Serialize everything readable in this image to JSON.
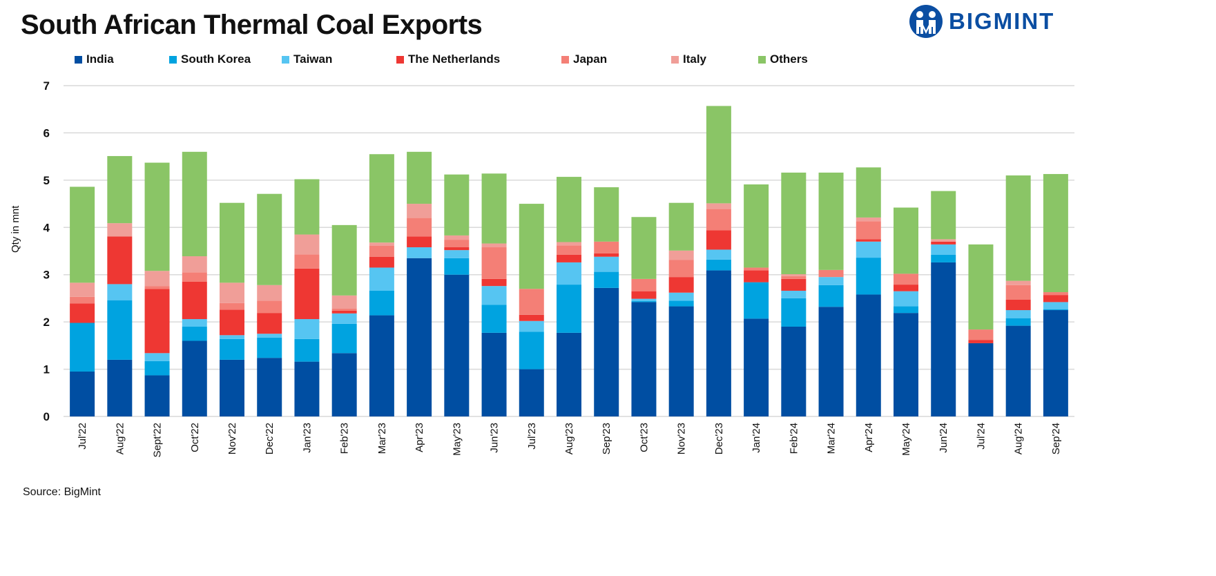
{
  "title": "South African Thermal Coal Exports",
  "logo": {
    "text": "BIGMINT",
    "color": "#0b4ea2"
  },
  "source": "Source: BigMint",
  "chart_data": {
    "type": "bar",
    "stacked": true,
    "title": "South African Thermal Coal Exports",
    "xlabel": "",
    "ylabel": "Qty in mnt",
    "ylim": [
      0,
      7
    ],
    "yticks": [
      0,
      1,
      2,
      3,
      4,
      5,
      6,
      7
    ],
    "grid": true,
    "legend_position": "top",
    "categories": [
      "Jul'22",
      "Aug'22",
      "Sept'22",
      "Oct'22",
      "Nov'22",
      "Dec'22",
      "Jan'23",
      "Feb'23",
      "Mar'23",
      "Apr'23",
      "May'23",
      "Jun'23",
      "Jul'23",
      "Aug'23",
      "Sep'23",
      "Oct'23",
      "Nov'23",
      "Dec'23",
      "Jan'24",
      "Feb'24",
      "Mar'24",
      "Apr'24",
      "May'24",
      "Jun'24",
      "Jul'24",
      "Aug'24",
      "Sep'24"
    ],
    "series": [
      {
        "name": "India",
        "color": "#004ea2",
        "values": [
          0.95,
          1.2,
          0.87,
          1.6,
          1.2,
          1.24,
          1.16,
          1.34,
          2.14,
          3.35,
          3.0,
          1.77,
          1.0,
          1.77,
          2.72,
          2.42,
          2.33,
          3.09,
          2.07,
          1.9,
          2.32,
          2.58,
          2.19,
          3.26,
          1.55,
          1.92,
          2.25
        ]
      },
      {
        "name": "South Korea",
        "color": "#00a3e0",
        "values": [
          1.03,
          1.26,
          0.3,
          0.3,
          0.44,
          0.43,
          0.48,
          0.62,
          0.52,
          0.0,
          0.35,
          0.59,
          0.79,
          1.02,
          0.34,
          0.02,
          0.12,
          0.23,
          0.77,
          0.6,
          0.46,
          0.78,
          0.14,
          0.16,
          0.0,
          0.16,
          0.02
        ]
      },
      {
        "name": "Taiwan",
        "color": "#56c5f2",
        "values": [
          0.0,
          0.34,
          0.17,
          0.16,
          0.08,
          0.08,
          0.42,
          0.22,
          0.49,
          0.23,
          0.17,
          0.4,
          0.23,
          0.47,
          0.32,
          0.05,
          0.17,
          0.21,
          0.0,
          0.16,
          0.17,
          0.34,
          0.32,
          0.22,
          0.0,
          0.17,
          0.15
        ]
      },
      {
        "name": "The Netherlands",
        "color": "#ee3733",
        "values": [
          0.41,
          1.01,
          1.36,
          0.79,
          0.54,
          0.44,
          1.07,
          0.06,
          0.23,
          0.23,
          0.06,
          0.15,
          0.13,
          0.16,
          0.07,
          0.16,
          0.33,
          0.41,
          0.25,
          0.25,
          0.0,
          0.05,
          0.14,
          0.06,
          0.07,
          0.22,
          0.15
        ]
      },
      {
        "name": "Japan",
        "color": "#f47f76",
        "values": [
          0.14,
          0.0,
          0.06,
          0.2,
          0.14,
          0.26,
          0.3,
          0.04,
          0.23,
          0.39,
          0.16,
          0.67,
          0.55,
          0.2,
          0.25,
          0.26,
          0.36,
          0.45,
          0.06,
          0.06,
          0.15,
          0.38,
          0.23,
          0.0,
          0.22,
          0.31,
          0.06
        ]
      },
      {
        "name": "Italy",
        "color": "#f09e98",
        "values": [
          0.3,
          0.28,
          0.32,
          0.34,
          0.43,
          0.33,
          0.42,
          0.28,
          0.07,
          0.3,
          0.09,
          0.08,
          0.0,
          0.07,
          0.0,
          0.0,
          0.2,
          0.12,
          0.0,
          0.04,
          0.0,
          0.08,
          0.0,
          0.05,
          0.0,
          0.09,
          0.0
        ]
      },
      {
        "name": "Others",
        "color": "#8ac566",
        "values": [
          2.03,
          1.42,
          2.29,
          2.21,
          1.69,
          1.93,
          1.17,
          1.49,
          1.87,
          1.1,
          1.29,
          1.48,
          1.8,
          1.38,
          1.15,
          1.31,
          1.01,
          2.06,
          1.76,
          2.15,
          2.06,
          1.06,
          1.4,
          1.02,
          1.8,
          2.23,
          2.5
        ]
      }
    ]
  }
}
